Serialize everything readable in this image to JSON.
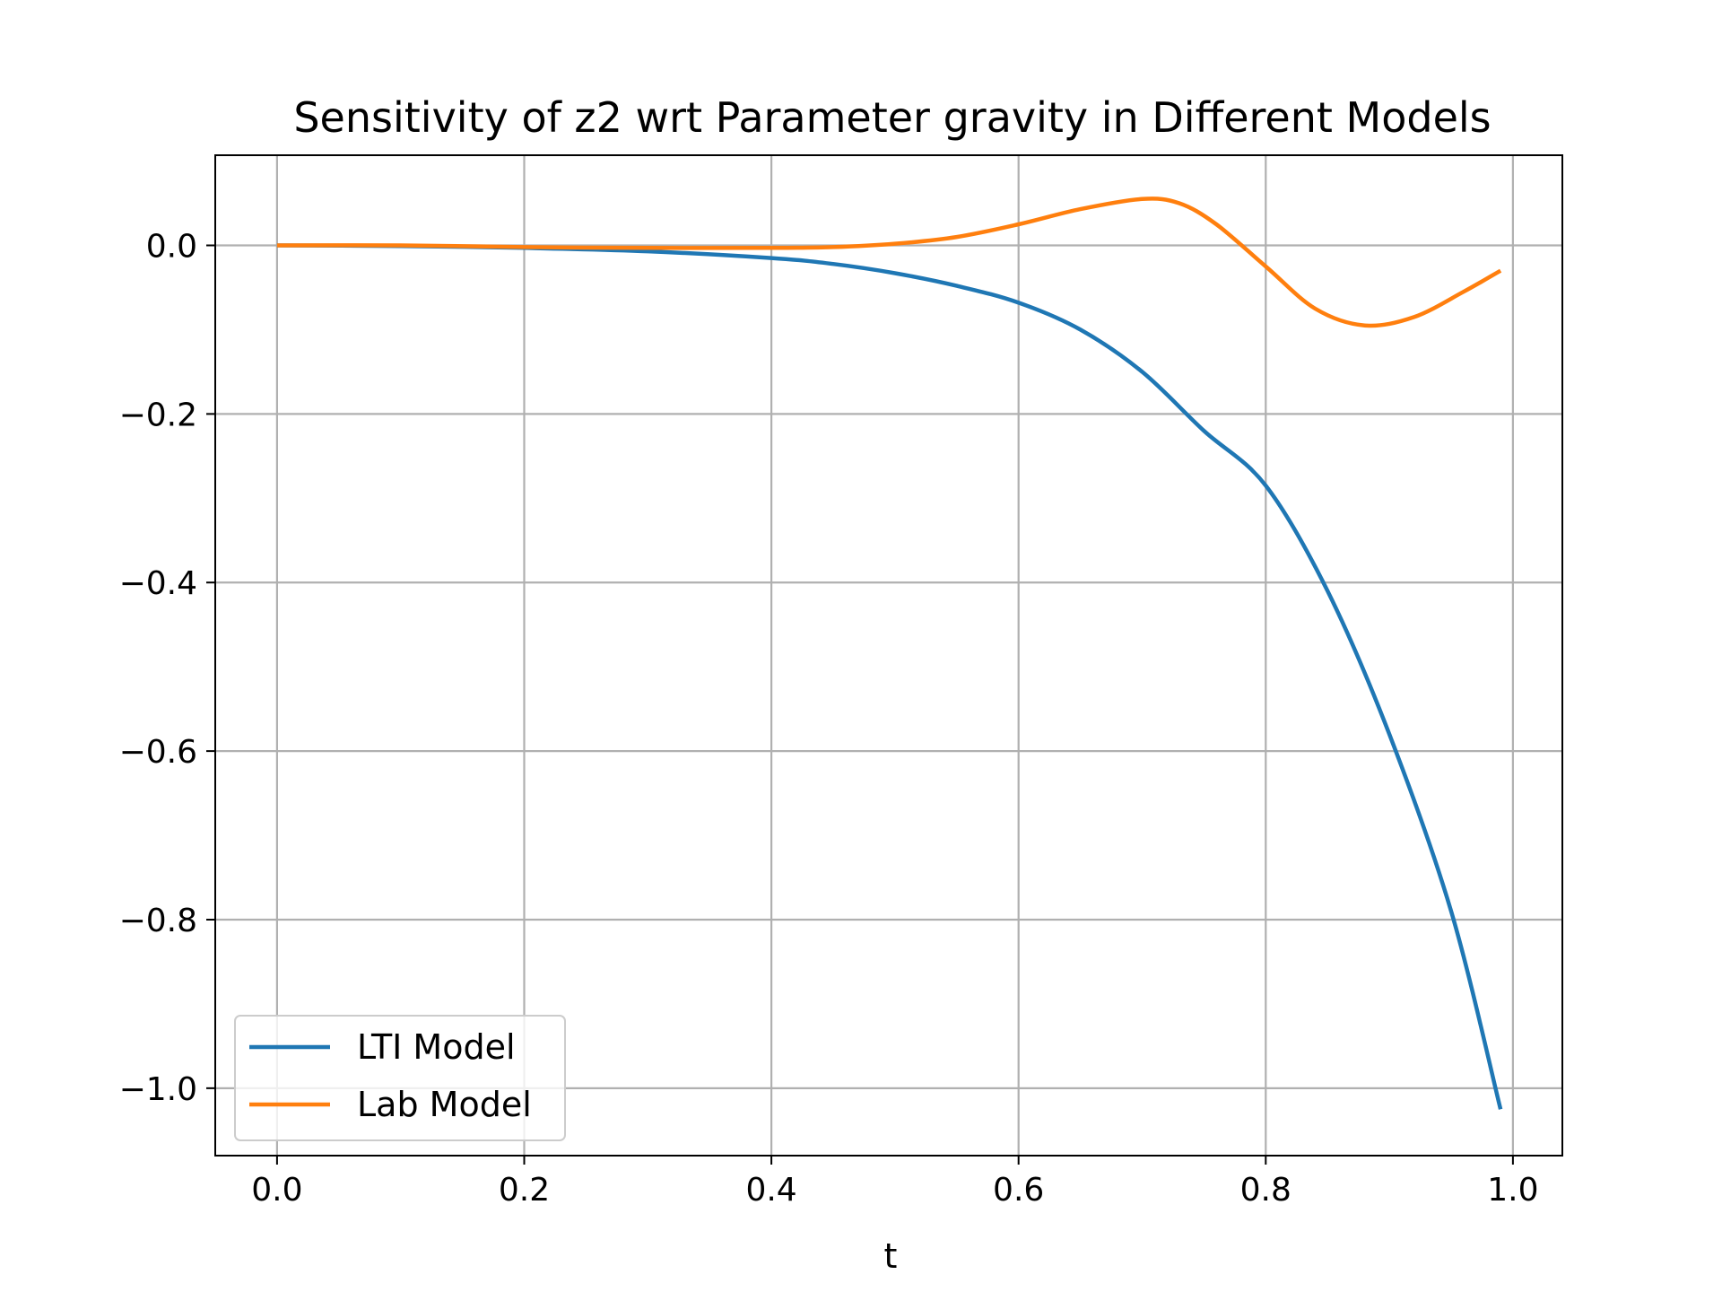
{
  "chart_data": {
    "type": "line",
    "title": "Sensitivity of z2 wrt Parameter gravity in Different Models",
    "xlabel": "t",
    "ylabel": "",
    "xlim": [
      -0.05,
      1.04
    ],
    "ylim": [
      -1.08,
      0.107
    ],
    "xticks": [
      0.0,
      0.2,
      0.4,
      0.6,
      0.8,
      1.0
    ],
    "xtick_labels": [
      "0.0",
      "0.2",
      "0.4",
      "0.6",
      "0.8",
      "1.0"
    ],
    "yticks": [
      0.0,
      -0.2,
      -0.4,
      -0.6,
      -0.8,
      -1.0
    ],
    "ytick_labels": [
      "0.0",
      "−0.2",
      "−0.4",
      "−0.6",
      "−0.8",
      "−1.0"
    ],
    "grid": true,
    "legend_position": "lower-left",
    "series": [
      {
        "name": "LTI Model",
        "color": "#1f77b4",
        "x": [
          0.0,
          0.1,
          0.2,
          0.3,
          0.4,
          0.45,
          0.5,
          0.55,
          0.6,
          0.65,
          0.7,
          0.75,
          0.8,
          0.85,
          0.9,
          0.95,
          0.99
        ],
        "y": [
          0.0,
          -0.0007,
          -0.003,
          -0.007,
          -0.015,
          -0.022,
          -0.033,
          -0.048,
          -0.068,
          -0.1,
          -0.15,
          -0.22,
          -0.285,
          -0.41,
          -0.58,
          -0.79,
          -1.025
        ]
      },
      {
        "name": "Lab Model",
        "color": "#ff7f0e",
        "x": [
          0.0,
          0.1,
          0.2,
          0.3,
          0.4,
          0.45,
          0.5,
          0.55,
          0.6,
          0.65,
          0.7,
          0.73,
          0.76,
          0.8,
          0.84,
          0.88,
          0.92,
          0.96,
          0.99
        ],
        "y": [
          0.0,
          0.0,
          -0.002,
          -0.003,
          -0.003,
          -0.002,
          0.002,
          0.01,
          0.025,
          0.043,
          0.055,
          0.05,
          0.025,
          -0.025,
          -0.075,
          -0.095,
          -0.085,
          -0.055,
          -0.03
        ]
      }
    ]
  }
}
